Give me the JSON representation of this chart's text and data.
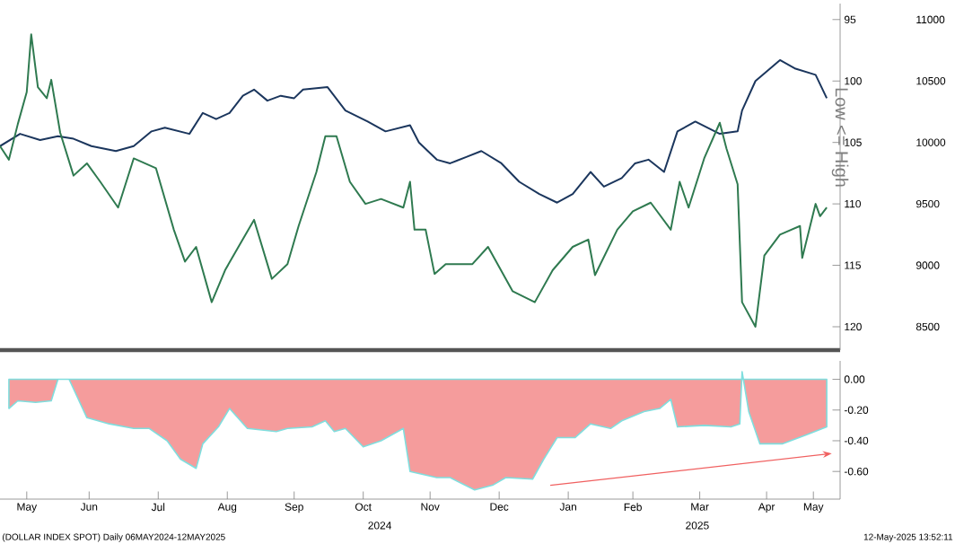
{
  "chart_data": [
    {
      "type": "line",
      "xlim": [
        "2024-05-06",
        "2025-05-18"
      ],
      "ylim": [
        121.9,
        93.7
      ],
      "yticks": [
        95,
        100,
        105,
        110,
        115,
        120
      ],
      "y2lim": [
        8310,
        11130
      ],
      "y2ticks": [
        8500,
        9000,
        9500,
        10000,
        10500,
        11000
      ],
      "ylabel": "Low <= High",
      "tick_labels": "y",
      "series": [
        {
          "color": "#1b365d",
          "x": [
            "2024-05-06",
            "2024-05-15",
            "2024-05-24",
            "2024-06-01",
            "2024-06-08",
            "2024-06-16",
            "2024-06-27",
            "2024-07-05",
            "2024-07-13",
            "2024-07-19",
            "2024-07-30",
            "2024-08-05",
            "2024-08-11",
            "2024-08-17",
            "2024-08-23",
            "2024-08-28",
            "2024-09-03",
            "2024-09-09",
            "2024-09-15",
            "2024-09-19",
            "2024-09-30",
            "2024-10-08",
            "2024-10-18",
            "2024-10-26",
            "2024-11-06",
            "2024-11-10",
            "2024-11-18",
            "2024-11-24",
            "2024-12-01",
            "2024-12-08",
            "2024-12-17",
            "2024-12-25",
            "2025-01-03",
            "2025-01-11",
            "2025-01-18",
            "2025-01-26",
            "2025-02-01",
            "2025-02-09",
            "2025-02-15",
            "2025-02-21",
            "2025-02-28",
            "2025-03-06",
            "2025-03-14",
            "2025-03-25",
            "2025-04-02",
            "2025-04-04",
            "2025-04-10",
            "2025-04-21",
            "2025-04-28",
            "2025-05-07",
            "2025-05-12"
          ],
          "values": [
            105.3,
            104.3,
            104.8,
            104.5,
            104.7,
            105.3,
            105.7,
            105.3,
            104.1,
            103.8,
            104.3,
            102.6,
            103.1,
            102.6,
            101.2,
            100.7,
            101.6,
            101.2,
            101.4,
            100.7,
            100.5,
            102.4,
            103.3,
            104.1,
            103.6,
            105.0,
            106.4,
            106.7,
            106.2,
            105.7,
            106.7,
            108.2,
            109.2,
            109.9,
            109.2,
            107.4,
            108.6,
            107.9,
            106.7,
            106.4,
            107.4,
            104.1,
            103.3,
            104.3,
            104.1,
            102.4,
            100.0,
            98.3,
            99.0,
            99.5,
            101.4
          ]
        },
        {
          "color": "#2f7a50",
          "axis": "y2",
          "x": [
            "2024-05-06",
            "2024-05-10",
            "2024-05-14",
            "2024-05-18",
            "2024-05-20",
            "2024-05-23",
            "2024-05-27",
            "2024-05-29",
            "2024-06-02",
            "2024-06-08",
            "2024-06-14",
            "2024-06-20",
            "2024-06-28",
            "2024-07-05",
            "2024-07-15",
            "2024-07-23",
            "2024-07-28",
            "2024-08-02",
            "2024-08-09",
            "2024-08-15",
            "2024-08-21",
            "2024-08-28",
            "2024-09-05",
            "2024-09-12",
            "2024-09-17",
            "2024-09-25",
            "2024-09-29",
            "2024-10-04",
            "2024-10-10",
            "2024-10-17",
            "2024-10-24",
            "2024-11-03",
            "2024-11-06",
            "2024-11-08",
            "2024-11-13",
            "2024-11-17",
            "2024-11-22",
            "2024-12-04",
            "2024-12-11",
            "2024-12-22",
            "2025-01-01",
            "2025-01-09",
            "2025-01-18",
            "2025-01-25",
            "2025-01-28",
            "2025-02-07",
            "2025-02-14",
            "2025-02-22",
            "2025-03-03",
            "2025-03-07",
            "2025-03-11",
            "2025-03-18",
            "2025-03-25",
            "2025-03-28",
            "2025-04-02",
            "2025-04-04",
            "2025-04-10",
            "2025-04-14",
            "2025-04-21",
            "2025-04-30",
            "2025-05-01",
            "2025-05-07",
            "2025-05-09",
            "2025-05-12"
          ],
          "values": [
            9970,
            9860,
            10150,
            10410,
            10880,
            10450,
            10360,
            10510,
            10080,
            9730,
            9830,
            9680,
            9470,
            9870,
            9790,
            9290,
            9030,
            9150,
            8700,
            8960,
            9150,
            9370,
            8890,
            9010,
            9320,
            9760,
            10050,
            10050,
            9680,
            9500,
            9540,
            9470,
            9680,
            9290,
            9290,
            8930,
            9010,
            9010,
            9150,
            8790,
            8700,
            8960,
            9150,
            9210,
            8920,
            9290,
            9440,
            9510,
            9290,
            9680,
            9470,
            9870,
            10160,
            9950,
            9660,
            8700,
            8500,
            9080,
            9250,
            9320,
            9060,
            9500,
            9400,
            9470
          ]
        }
      ]
    },
    {
      "type": "area",
      "xlim": [
        "2024-05-06",
        "2025-05-18"
      ],
      "ylim": [
        -0.78,
        0.12
      ],
      "xticks": [
        {
          "value": "2024-05-18",
          "label": "May"
        },
        {
          "value": "2024-06-15",
          "label": "Jun"
        },
        {
          "value": "2024-07-16",
          "label": "Jul"
        },
        {
          "value": "2024-08-16",
          "label": "Aug"
        },
        {
          "value": "2024-09-15",
          "label": "Sep"
        },
        {
          "value": "2024-10-16",
          "label": "Oct"
        },
        {
          "value": "2024-11-15",
          "label": "Nov"
        },
        {
          "value": "2024-12-16",
          "label": "Dec"
        },
        {
          "value": "2025-01-16",
          "label": "Jan"
        },
        {
          "value": "2025-02-14",
          "label": "Feb"
        },
        {
          "value": "2025-03-16",
          "label": "Mar"
        },
        {
          "value": "2025-04-15",
          "label": "Apr"
        },
        {
          "value": "2025-05-06",
          "label": "May"
        }
      ],
      "yticks": [
        {
          "value": -0.6,
          "label": "-0.60"
        },
        {
          "value": -0.4,
          "label": "-0.40"
        },
        {
          "value": -0.2,
          "label": "-0.20"
        },
        {
          "value": 0,
          "label": "0.00"
        }
      ],
      "color": "#f59c9c",
      "x": [
        "2024-05-10",
        "2024-05-14",
        "2024-05-22",
        "2024-05-29",
        "2024-06-01",
        "2024-06-06",
        "2024-06-14",
        "2024-06-24",
        "2024-07-05",
        "2024-07-12",
        "2024-07-20",
        "2024-07-26",
        "2024-08-02",
        "2024-08-05",
        "2024-08-12",
        "2024-08-17",
        "2024-08-25",
        "2024-09-07",
        "2024-09-12",
        "2024-09-23",
        "2024-09-29",
        "2024-10-03",
        "2024-10-08",
        "2024-10-16",
        "2024-10-24",
        "2024-11-03",
        "2024-11-06",
        "2024-11-18",
        "2024-11-24",
        "2024-12-05",
        "2024-12-13",
        "2024-12-19",
        "2024-12-31",
        "2025-01-05",
        "2025-01-11",
        "2025-01-19",
        "2025-01-26",
        "2025-02-04",
        "2025-02-09",
        "2025-02-19",
        "2025-02-26",
        "2025-03-03",
        "2025-03-06",
        "2025-03-18",
        "2025-03-30",
        "2025-04-03",
        "2025-04-04",
        "2025-04-07",
        "2025-04-12",
        "2025-04-22",
        "2025-05-03",
        "2025-05-12"
      ],
      "values": [
        -0.19,
        -0.14,
        -0.15,
        -0.14,
        0.0,
        0.0,
        -0.25,
        -0.29,
        -0.32,
        -0.32,
        -0.4,
        -0.52,
        -0.58,
        -0.42,
        -0.31,
        -0.19,
        -0.32,
        -0.34,
        -0.32,
        -0.31,
        -0.27,
        -0.34,
        -0.32,
        -0.44,
        -0.4,
        -0.32,
        -0.6,
        -0.64,
        -0.64,
        -0.72,
        -0.69,
        -0.64,
        -0.65,
        -0.52,
        -0.38,
        -0.38,
        -0.29,
        -0.32,
        -0.27,
        -0.21,
        -0.19,
        -0.13,
        -0.31,
        -0.3,
        -0.31,
        -0.29,
        0.05,
        -0.21,
        -0.42,
        -0.42,
        -0.36,
        -0.31
      ],
      "annotations": [
        "2024",
        "2025",
        "(DOLLAR INDEX SPOT)  Daily 06MAY2024-12MAY2025",
        "12-May-2025 13:52:11"
      ]
    }
  ]
}
